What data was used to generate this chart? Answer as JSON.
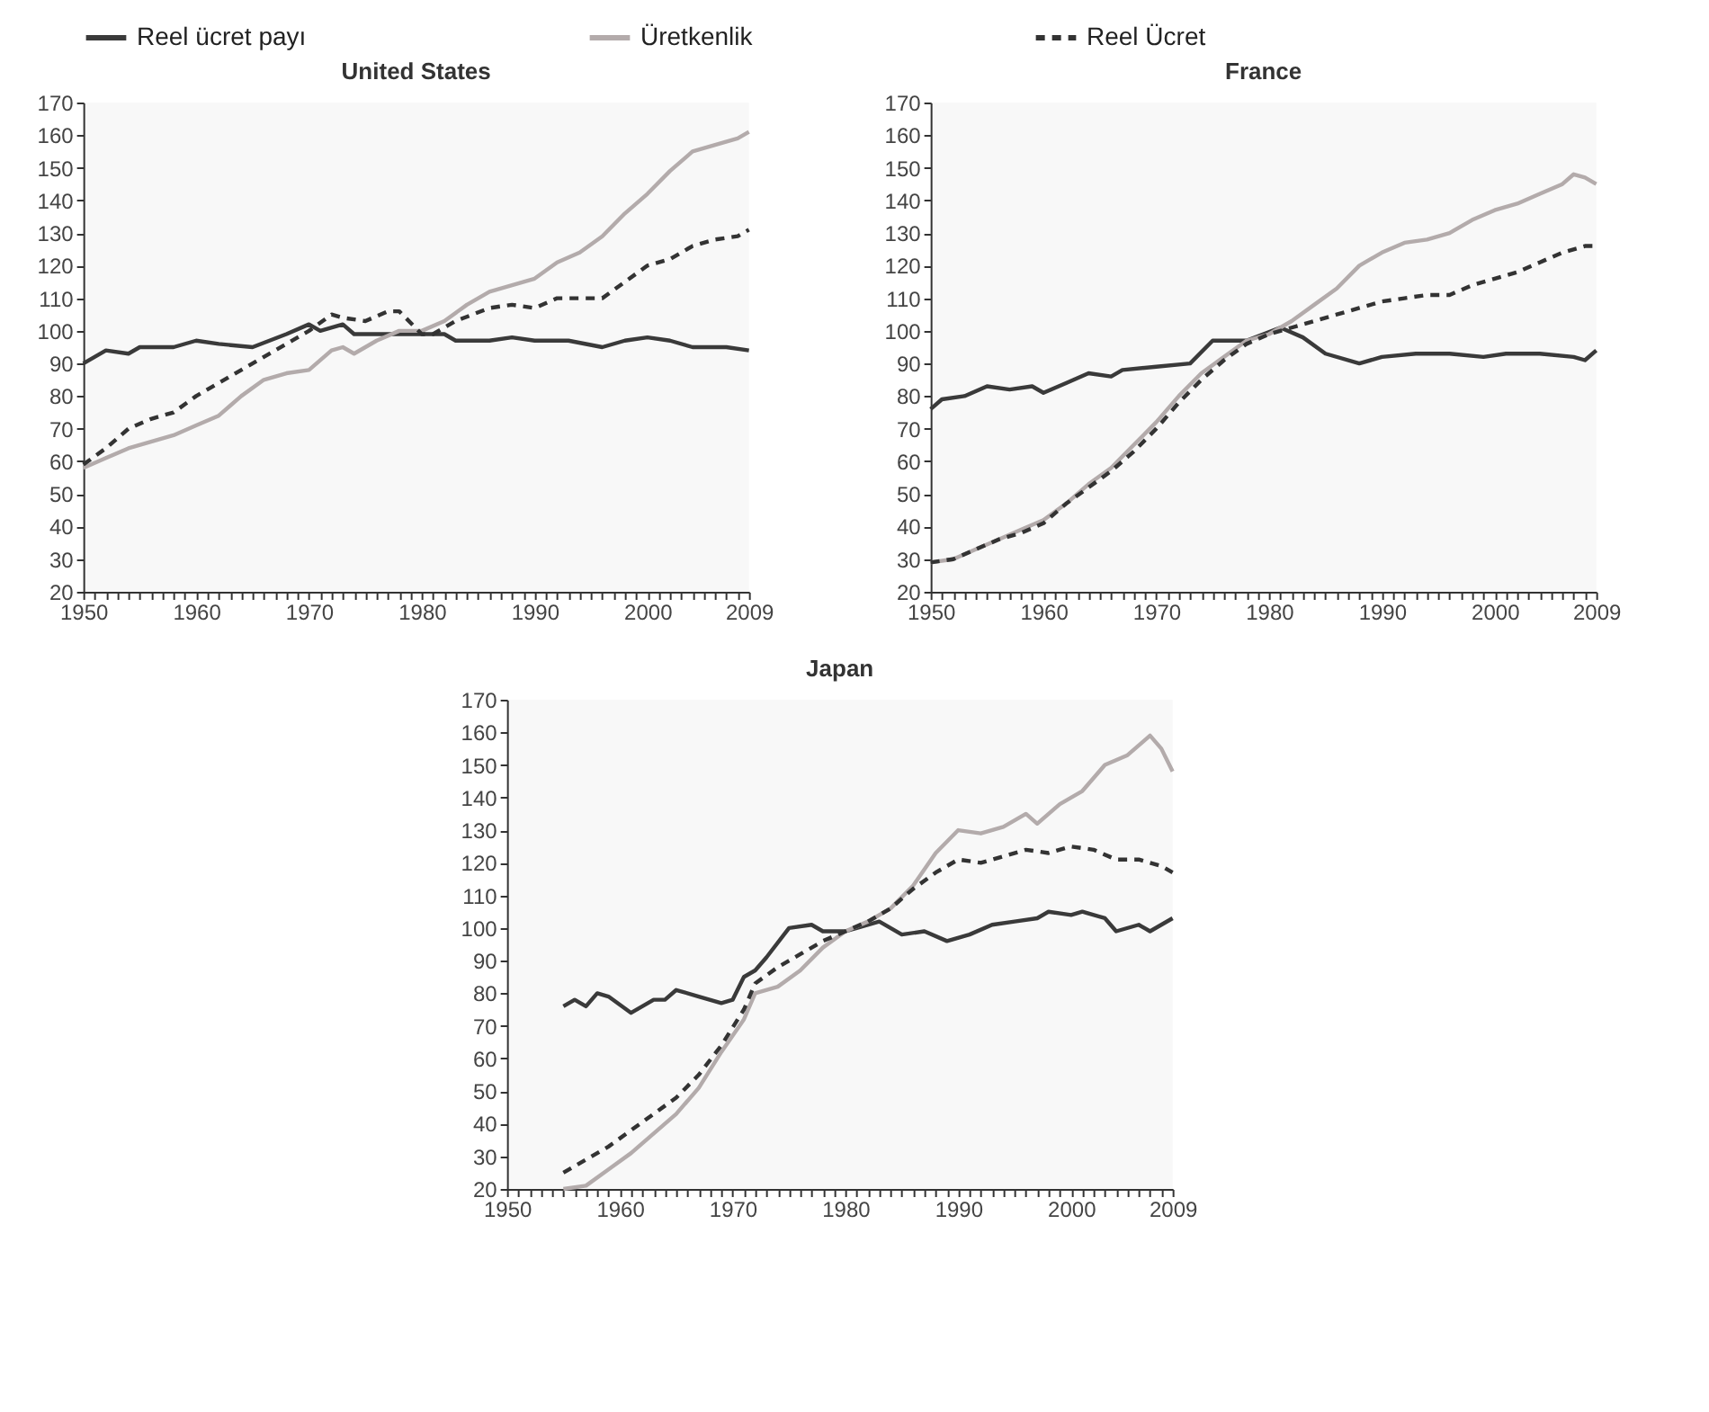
{
  "chart_data": [
    {
      "type": "line",
      "title": "United States",
      "legend": "top",
      "xlim": [
        1950,
        2009
      ],
      "ylim": [
        20,
        170
      ],
      "yticks": [
        20,
        30,
        40,
        50,
        60,
        70,
        80,
        90,
        100,
        110,
        120,
        130,
        140,
        150,
        160,
        170
      ],
      "xticks": [
        1950,
        {
          "value": 1951,
          "label": null
        },
        {
          "value": 1952,
          "label": null
        },
        {
          "value": 1953,
          "label": null
        },
        {
          "value": 1954,
          "label": null
        },
        {
          "value": 1955,
          "label": null
        },
        {
          "value": 1956,
          "label": null
        },
        {
          "value": 1957,
          "label": null
        },
        {
          "value": 1958,
          "label": null
        },
        {
          "value": 1959,
          "label": null
        },
        1960,
        {
          "value": 1961,
          "label": null
        },
        {
          "value": 1962,
          "label": null
        },
        {
          "value": 1963,
          "label": null
        },
        {
          "value": 1964,
          "label": null
        },
        {
          "value": 1965,
          "label": null
        },
        {
          "value": 1966,
          "label": null
        },
        {
          "value": 1967,
          "label": null
        },
        {
          "value": 1968,
          "label": null
        },
        {
          "value": 1969,
          "label": null
        },
        1970,
        {
          "value": 1971,
          "label": null
        },
        {
          "value": 1972,
          "label": null
        },
        {
          "value": 1973,
          "label": null
        },
        {
          "value": 1974,
          "label": null
        },
        {
          "value": 1975,
          "label": null
        },
        {
          "value": 1976,
          "label": null
        },
        {
          "value": 1977,
          "label": null
        },
        {
          "value": 1978,
          "label": null
        },
        {
          "value": 1979,
          "label": null
        },
        1980,
        {
          "value": 1981,
          "label": null
        },
        {
          "value": 1982,
          "label": null
        },
        {
          "value": 1983,
          "label": null
        },
        {
          "value": 1984,
          "label": null
        },
        {
          "value": 1985,
          "label": null
        },
        {
          "value": 1986,
          "label": null
        },
        {
          "value": 1987,
          "label": null
        },
        {
          "value": 1988,
          "label": null
        },
        {
          "value": 1989,
          "label": null
        },
        1990,
        {
          "value": 1991,
          "label": null
        },
        {
          "value": 1992,
          "label": null
        },
        {
          "value": 1993,
          "label": null
        },
        {
          "value": 1994,
          "label": null
        },
        {
          "value": 1995,
          "label": null
        },
        {
          "value": 1996,
          "label": null
        },
        {
          "value": 1997,
          "label": null
        },
        {
          "value": 1998,
          "label": null
        },
        {
          "value": 1999,
          "label": null
        },
        2000,
        {
          "value": 2001,
          "label": null
        },
        {
          "value": 2002,
          "label": null
        },
        {
          "value": 2003,
          "label": null
        },
        {
          "value": 2004,
          "label": null
        },
        {
          "value": 2005,
          "label": null
        },
        {
          "value": 2006,
          "label": null
        },
        {
          "value": 2007,
          "label": null
        },
        {
          "value": 2008,
          "label": null
        },
        2009
      ],
      "series": [
        {
          "name": "Reel ücret payı",
          "color": "#3a3a3a",
          "line_style": "solid",
          "x": [
            1950,
            1952,
            1954,
            1955,
            1958,
            1960,
            1962,
            1965,
            1968,
            1970,
            1971,
            1973,
            1974,
            1976,
            1980,
            1982,
            1983,
            1986,
            1988,
            1990,
            1993,
            1996,
            1998,
            2000,
            2002,
            2004,
            2007,
            2009
          ],
          "values": [
            90,
            94,
            93,
            95,
            95,
            97,
            96,
            95,
            99,
            102,
            100,
            102,
            99,
            99,
            99,
            99,
            97,
            97,
            98,
            97,
            97,
            95,
            97,
            98,
            97,
            95,
            95,
            94
          ]
        },
        {
          "name": "Üretkenlik",
          "color": "#b3abab",
          "line_style": "solid",
          "x": [
            1950,
            1952,
            1954,
            1956,
            1958,
            1960,
            1962,
            1964,
            1966,
            1968,
            1970,
            1972,
            1973,
            1974,
            1976,
            1978,
            1980,
            1982,
            1984,
            1986,
            1988,
            1990,
            1992,
            1994,
            1996,
            1998,
            2000,
            2002,
            2004,
            2006,
            2008,
            2009
          ],
          "values": [
            58,
            61,
            64,
            66,
            68,
            71,
            74,
            80,
            85,
            87,
            88,
            94,
            95,
            93,
            97,
            100,
            100,
            103,
            108,
            112,
            114,
            116,
            121,
            124,
            129,
            136,
            142,
            149,
            155,
            157,
            159,
            161
          ]
        },
        {
          "name": "Reel Ücret",
          "color": "#333333",
          "line_style": "dashed",
          "x": [
            1950,
            1952,
            1954,
            1956,
            1958,
            1960,
            1962,
            1964,
            1966,
            1968,
            1970,
            1972,
            1973,
            1975,
            1977,
            1978,
            1980,
            1981,
            1983,
            1986,
            1988,
            1990,
            1992,
            1994,
            1996,
            1998,
            2000,
            2002,
            2004,
            2006,
            2008,
            2009
          ],
          "values": [
            59,
            64,
            70,
            73,
            75,
            80,
            84,
            88,
            92,
            96,
            100,
            105,
            104,
            103,
            106,
            106,
            99,
            99,
            103,
            107,
            108,
            107,
            110,
            110,
            110,
            115,
            120,
            122,
            126,
            128,
            129,
            131
          ]
        }
      ]
    },
    {
      "type": "line",
      "title": "France",
      "xlim": [
        1950,
        2009
      ],
      "ylim": [
        20,
        170
      ],
      "yticks": [
        20,
        30,
        40,
        50,
        60,
        70,
        80,
        90,
        100,
        110,
        120,
        130,
        140,
        150,
        160,
        170
      ],
      "xticks": [
        1950,
        {
          "value": 1951,
          "label": null
        },
        {
          "value": 1952,
          "label": null
        },
        {
          "value": 1953,
          "label": null
        },
        {
          "value": 1954,
          "label": null
        },
        {
          "value": 1955,
          "label": null
        },
        {
          "value": 1956,
          "label": null
        },
        {
          "value": 1957,
          "label": null
        },
        {
          "value": 1958,
          "label": null
        },
        {
          "value": 1959,
          "label": null
        },
        1960,
        {
          "value": 1961,
          "label": null
        },
        {
          "value": 1962,
          "label": null
        },
        {
          "value": 1963,
          "label": null
        },
        {
          "value": 1964,
          "label": null
        },
        {
          "value": 1965,
          "label": null
        },
        {
          "value": 1966,
          "label": null
        },
        {
          "value": 1967,
          "label": null
        },
        {
          "value": 1968,
          "label": null
        },
        {
          "value": 1969,
          "label": null
        },
        1970,
        {
          "value": 1971,
          "label": null
        },
        {
          "value": 1972,
          "label": null
        },
        {
          "value": 1973,
          "label": null
        },
        {
          "value": 1974,
          "label": null
        },
        {
          "value": 1975,
          "label": null
        },
        {
          "value": 1976,
          "label": null
        },
        {
          "value": 1977,
          "label": null
        },
        {
          "value": 1978,
          "label": null
        },
        {
          "value": 1979,
          "label": null
        },
        1980,
        {
          "value": 1981,
          "label": null
        },
        {
          "value": 1982,
          "label": null
        },
        {
          "value": 1983,
          "label": null
        },
        {
          "value": 1984,
          "label": null
        },
        {
          "value": 1985,
          "label": null
        },
        {
          "value": 1986,
          "label": null
        },
        {
          "value": 1987,
          "label": null
        },
        {
          "value": 1988,
          "label": null
        },
        {
          "value": 1989,
          "label": null
        },
        1990,
        {
          "value": 1991,
          "label": null
        },
        {
          "value": 1992,
          "label": null
        },
        {
          "value": 1993,
          "label": null
        },
        {
          "value": 1994,
          "label": null
        },
        {
          "value": 1995,
          "label": null
        },
        {
          "value": 1996,
          "label": null
        },
        {
          "value": 1997,
          "label": null
        },
        {
          "value": 1998,
          "label": null
        },
        {
          "value": 1999,
          "label": null
        },
        2000,
        {
          "value": 2001,
          "label": null
        },
        {
          "value": 2002,
          "label": null
        },
        {
          "value": 2003,
          "label": null
        },
        {
          "value": 2004,
          "label": null
        },
        {
          "value": 2005,
          "label": null
        },
        {
          "value": 2006,
          "label": null
        },
        {
          "value": 2007,
          "label": null
        },
        {
          "value": 2008,
          "label": null
        },
        2009
      ],
      "series": [
        {
          "color": "#3a3a3a",
          "line_style": "solid",
          "x": [
            1950,
            1951,
            1953,
            1955,
            1957,
            1959,
            1960,
            1962,
            1964,
            1966,
            1967,
            1970,
            1973,
            1975,
            1978,
            1981,
            1983,
            1985,
            1988,
            1990,
            1993,
            1996,
            1999,
            2001,
            2004,
            2007,
            2008,
            2009
          ],
          "values": [
            76,
            79,
            80,
            83,
            82,
            83,
            81,
            84,
            87,
            86,
            88,
            89,
            90,
            97,
            97,
            101,
            98,
            93,
            90,
            92,
            93,
            93,
            92,
            93,
            93,
            92,
            91,
            94
          ]
        },
        {
          "color": "#b3abab",
          "line_style": "solid",
          "x": [
            1950,
            1952,
            1954,
            1956,
            1958,
            1960,
            1962,
            1964,
            1966,
            1968,
            1970,
            1972,
            1974,
            1976,
            1978,
            1980,
            1982,
            1984,
            1986,
            1988,
            1990,
            1992,
            1994,
            1996,
            1998,
            2000,
            2002,
            2004,
            2006,
            2007,
            2008,
            2009
          ],
          "values": [
            29,
            30,
            33,
            36,
            39,
            42,
            47,
            53,
            58,
            65,
            72,
            80,
            87,
            92,
            97,
            99,
            103,
            108,
            113,
            120,
            124,
            127,
            128,
            130,
            134,
            137,
            139,
            142,
            145,
            148,
            147,
            145
          ]
        },
        {
          "color": "#333333",
          "line_style": "dashed",
          "x": [
            1950,
            1952,
            1954,
            1956,
            1958,
            1960,
            1962,
            1964,
            1966,
            1968,
            1970,
            1972,
            1974,
            1976,
            1978,
            1980,
            1982,
            1984,
            1986,
            1988,
            1990,
            1992,
            1994,
            1996,
            1998,
            2000,
            2002,
            2004,
            2006,
            2008,
            2009
          ],
          "values": [
            29,
            30,
            33,
            36,
            38,
            41,
            47,
            52,
            57,
            63,
            70,
            78,
            85,
            91,
            96,
            99,
            101,
            103,
            105,
            107,
            109,
            110,
            111,
            111,
            114,
            116,
            118,
            121,
            124,
            126,
            126
          ]
        }
      ]
    },
    {
      "type": "line",
      "title": "Japan",
      "xlim": [
        1950,
        2009
      ],
      "ylim": [
        20,
        170
      ],
      "yticks": [
        20,
        30,
        40,
        50,
        60,
        70,
        80,
        90,
        100,
        110,
        120,
        130,
        140,
        150,
        160,
        170
      ],
      "xticks": [
        1950,
        {
          "value": 1951,
          "label": null
        },
        {
          "value": 1952,
          "label": null
        },
        {
          "value": 1953,
          "label": null
        },
        {
          "value": 1954,
          "label": null
        },
        {
          "value": 1955,
          "label": null
        },
        {
          "value": 1956,
          "label": null
        },
        {
          "value": 1957,
          "label": null
        },
        {
          "value": 1958,
          "label": null
        },
        {
          "value": 1959,
          "label": null
        },
        1960,
        {
          "value": 1961,
          "label": null
        },
        {
          "value": 1962,
          "label": null
        },
        {
          "value": 1963,
          "label": null
        },
        {
          "value": 1964,
          "label": null
        },
        {
          "value": 1965,
          "label": null
        },
        {
          "value": 1966,
          "label": null
        },
        {
          "value": 1967,
          "label": null
        },
        {
          "value": 1968,
          "label": null
        },
        {
          "value": 1969,
          "label": null
        },
        1970,
        {
          "value": 1971,
          "label": null
        },
        {
          "value": 1972,
          "label": null
        },
        {
          "value": 1973,
          "label": null
        },
        {
          "value": 1974,
          "label": null
        },
        {
          "value": 1975,
          "label": null
        },
        {
          "value": 1976,
          "label": null
        },
        {
          "value": 1977,
          "label": null
        },
        {
          "value": 1978,
          "label": null
        },
        {
          "value": 1979,
          "label": null
        },
        1980,
        {
          "value": 1981,
          "label": null
        },
        {
          "value": 1982,
          "label": null
        },
        {
          "value": 1983,
          "label": null
        },
        {
          "value": 1984,
          "label": null
        },
        {
          "value": 1985,
          "label": null
        },
        {
          "value": 1986,
          "label": null
        },
        {
          "value": 1987,
          "label": null
        },
        {
          "value": 1988,
          "label": null
        },
        {
          "value": 1989,
          "label": null
        },
        1990,
        {
          "value": 1991,
          "label": null
        },
        {
          "value": 1992,
          "label": null
        },
        {
          "value": 1993,
          "label": null
        },
        {
          "value": 1994,
          "label": null
        },
        {
          "value": 1995,
          "label": null
        },
        {
          "value": 1996,
          "label": null
        },
        {
          "value": 1997,
          "label": null
        },
        {
          "value": 1998,
          "label": null
        },
        {
          "value": 1999,
          "label": null
        },
        2000,
        {
          "value": 2001,
          "label": null
        },
        {
          "value": 2002,
          "label": null
        },
        {
          "value": 2003,
          "label": null
        },
        {
          "value": 2004,
          "label": null
        },
        {
          "value": 2005,
          "label": null
        },
        {
          "value": 2006,
          "label": null
        },
        {
          "value": 2007,
          "label": null
        },
        {
          "value": 2008,
          "label": null
        },
        2009
      ],
      "series": [
        {
          "color": "#3a3a3a",
          "line_style": "solid",
          "x": [
            1955,
            1956,
            1957,
            1958,
            1959,
            1961,
            1963,
            1964,
            1965,
            1967,
            1969,
            1970,
            1971,
            1972,
            1973,
            1975,
            1977,
            1978,
            1980,
            1981,
            1983,
            1985,
            1987,
            1989,
            1991,
            1993,
            1995,
            1997,
            1998,
            2000,
            2001,
            2003,
            2004,
            2006,
            2007,
            2009
          ],
          "values": [
            76,
            78,
            76,
            80,
            79,
            74,
            78,
            78,
            81,
            79,
            77,
            78,
            85,
            87,
            91,
            100,
            101,
            99,
            99,
            100,
            102,
            98,
            99,
            96,
            98,
            101,
            102,
            103,
            105,
            104,
            105,
            103,
            99,
            101,
            99,
            103
          ]
        },
        {
          "color": "#b3abab",
          "line_style": "solid",
          "x": [
            1955,
            1957,
            1959,
            1961,
            1963,
            1965,
            1967,
            1969,
            1971,
            1972,
            1974,
            1976,
            1978,
            1980,
            1982,
            1984,
            1986,
            1988,
            1990,
            1992,
            1994,
            1996,
            1997,
            1999,
            2001,
            2003,
            2005,
            2007,
            2008,
            2009
          ],
          "values": [
            20,
            21,
            26,
            31,
            37,
            43,
            51,
            62,
            72,
            80,
            82,
            87,
            94,
            99,
            102,
            106,
            113,
            123,
            130,
            129,
            131,
            135,
            132,
            138,
            142,
            150,
            153,
            159,
            155,
            148
          ]
        },
        {
          "color": "#333333",
          "line_style": "dashed",
          "x": [
            1955,
            1957,
            1959,
            1961,
            1963,
            1965,
            1967,
            1969,
            1971,
            1972,
            1974,
            1976,
            1978,
            1980,
            1982,
            1984,
            1986,
            1988,
            1990,
            1992,
            1994,
            1996,
            1998,
            2000,
            2002,
            2004,
            2006,
            2008,
            2009
          ],
          "values": [
            25,
            29,
            33,
            38,
            43,
            48,
            55,
            64,
            75,
            83,
            88,
            92,
            96,
            99,
            102,
            106,
            112,
            117,
            121,
            120,
            122,
            124,
            123,
            125,
            124,
            121,
            121,
            119,
            117
          ]
        }
      ]
    }
  ]
}
